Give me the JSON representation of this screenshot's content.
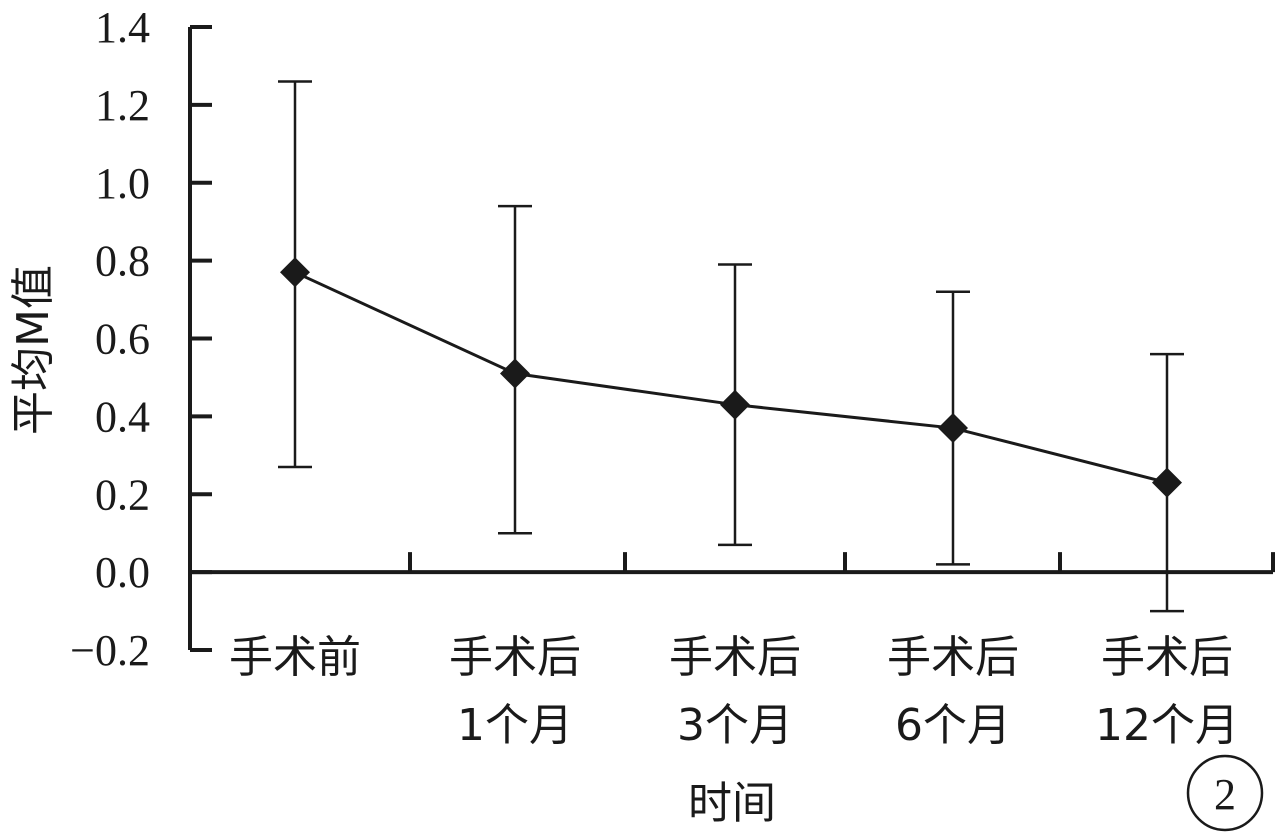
{
  "chart_data": {
    "type": "line",
    "categories": [
      [
        "手术前"
      ],
      [
        "手术后",
        "1个月"
      ],
      [
        "手术后",
        "3个月"
      ],
      [
        "手术后",
        "6个月"
      ],
      [
        "手术后",
        "12个月"
      ]
    ],
    "series": [
      {
        "values": [
          0.77,
          0.51,
          0.43,
          0.37,
          0.23
        ],
        "error_upper": [
          1.26,
          0.94,
          0.79,
          0.72,
          0.56
        ],
        "error_lower": [
          0.27,
          0.1,
          0.07,
          0.02,
          -0.1
        ]
      }
    ],
    "ylim": [
      -0.2,
      1.4
    ],
    "yticks": [
      -0.2,
      0.0,
      0.2,
      0.4,
      0.6,
      0.8,
      1.0,
      1.2,
      1.4
    ],
    "ytick_labels": [
      "−0.2",
      "0.0",
      "0.2",
      "0.4",
      "0.6",
      "0.8",
      "1.0",
      "1.2",
      "1.4"
    ],
    "xlabel": "时间",
    "ylabel": "平均M值",
    "panel_label": "2",
    "grid": false,
    "marker": "diamond",
    "color": "#1a1a1a"
  }
}
